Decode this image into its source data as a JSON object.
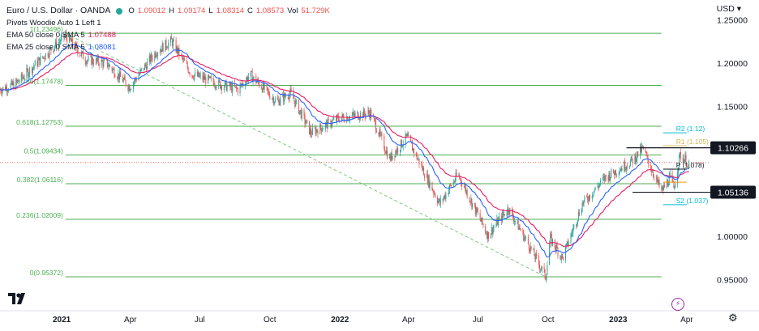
{
  "header": {
    "title": "Euro / U.S. Dollar · OANDA",
    "open_label": "O",
    "open": "1.09012",
    "high_label": "H",
    "high": "1.09174",
    "low_label": "L",
    "low": "1.08314",
    "close_label": "C",
    "close": "1.08573",
    "vol_label": "Vol",
    "vol": "51.729K",
    "currency": "USD"
  },
  "indicators": [
    {
      "label": "Pivots Woodie Auto 1 Left 1",
      "value": ""
    },
    {
      "label": "EMA 50 close 0 SMA 5",
      "value": "1.07488"
    },
    {
      "label": "EMA 25 close 0 SMA 5",
      "value": "1.08081"
    }
  ],
  "colors": {
    "up": "#26a69a",
    "down": "#ef5350",
    "ema50": "#e91e63",
    "ema25": "#2962ff",
    "fib": "#4caf50",
    "price_line": "#ef5350",
    "trend": "#81c784",
    "r1": "#d4b85a",
    "r2": "#00bcd4",
    "p": "#131722",
    "s1": "#ff9800",
    "s2": "#00bcd4"
  },
  "chart_data": {
    "type": "candlestick",
    "x_ticks": [
      {
        "label": "2021",
        "date": "2021-01-01"
      },
      {
        "label": "Apr",
        "date": "2021-04-01"
      },
      {
        "label": "Jul",
        "date": "2021-07-01"
      },
      {
        "label": "Oct",
        "date": "2021-10-01"
      },
      {
        "label": "2022",
        "date": "2022-01-01"
      },
      {
        "label": "Apr",
        "date": "2022-04-01"
      },
      {
        "label": "Jul",
        "date": "2022-07-01"
      },
      {
        "label": "Oct",
        "date": "2022-10-01"
      },
      {
        "label": "2023",
        "date": "2023-01-01"
      },
      {
        "label": "Apr",
        "date": "2023-04-01"
      }
    ],
    "y_ticks": [
      "1.25000",
      "1.20000",
      "1.15000",
      "1.10000",
      "1.05000",
      "1.00000",
      "0.95000"
    ],
    "ylim": [
      0.93,
      1.26
    ],
    "xlim": [
      "2020-10-12",
      "2023-05-02"
    ],
    "price_path": [
      [
        "2020-10-12",
        1.17
      ],
      [
        "2020-11-01",
        1.176
      ],
      [
        "2020-12-01",
        1.202
      ],
      [
        "2021-01-06",
        1.232
      ],
      [
        "2021-02-01",
        1.205
      ],
      [
        "2021-03-01",
        1.2
      ],
      [
        "2021-03-31",
        1.173
      ],
      [
        "2021-05-05",
        1.214
      ],
      [
        "2021-05-25",
        1.226
      ],
      [
        "2021-06-20",
        1.188
      ],
      [
        "2021-07-20",
        1.178
      ],
      [
        "2021-08-20",
        1.17
      ],
      [
        "2021-09-05",
        1.187
      ],
      [
        "2021-10-10",
        1.156
      ],
      [
        "2021-10-28",
        1.166
      ],
      [
        "2021-11-24",
        1.12
      ],
      [
        "2021-12-31",
        1.137
      ],
      [
        "2022-02-10",
        1.143
      ],
      [
        "2022-03-07",
        1.09
      ],
      [
        "2022-03-30",
        1.115
      ],
      [
        "2022-05-12",
        1.038
      ],
      [
        "2022-06-05",
        1.072
      ],
      [
        "2022-06-20",
        1.045
      ],
      [
        "2022-07-14",
        1.002
      ],
      [
        "2022-08-10",
        1.033
      ],
      [
        "2022-09-06",
        0.99
      ],
      [
        "2022-09-28",
        0.954
      ],
      [
        "2022-10-04",
        0.998
      ],
      [
        "2022-10-20",
        0.975
      ],
      [
        "2022-11-15",
        1.038
      ],
      [
        "2022-12-15",
        1.068
      ],
      [
        "2023-01-20",
        1.088
      ],
      [
        "2023-02-02",
        1.102
      ],
      [
        "2023-02-27",
        1.052
      ],
      [
        "2023-03-10",
        1.068
      ],
      [
        "2023-03-15",
        1.056
      ],
      [
        "2023-03-23",
        1.094
      ],
      [
        "2023-04-04",
        1.086
      ]
    ],
    "last_price": 1.0857,
    "fibonacci": [
      {
        "level": "0",
        "value": 0.95372
      },
      {
        "level": "0.236",
        "value": 1.02009
      },
      {
        "level": "0.382",
        "value": 1.06116
      },
      {
        "level": "0.5",
        "value": 1.09434
      },
      {
        "level": "0.618",
        "value": 1.12753
      },
      {
        "level": "0.786",
        "value": 1.17478
      },
      {
        "level": "1",
        "value": 1.23496
      }
    ],
    "fib_text": [
      {
        "level": "0",
        "text": "0(0.95372)"
      },
      {
        "level": "0.236",
        "text": "0.236(1.02009)"
      },
      {
        "level": "0.382",
        "text": "0.382(1.06116)"
      },
      {
        "level": "0.5",
        "text": "0.5(1.09434)"
      },
      {
        "level": "0.618",
        "text": "0.618(1.12753)"
      },
      {
        "level": "0.786",
        "text": "0.786(1.17478)"
      },
      {
        "level": "1",
        "text": "1(1.23496)"
      }
    ],
    "fib_range": [
      "2021-01-06",
      "2023-02-27"
    ],
    "trendline": [
      [
        "2021-01-06",
        1.23496
      ],
      [
        "2022-09-28",
        0.95372
      ]
    ],
    "pivots": [
      {
        "name": "R2",
        "value": 1.12,
        "text": "R2 (1.12)"
      },
      {
        "name": "R1",
        "value": 1.105,
        "text": "R1 (1.105)"
      },
      {
        "name": "P",
        "value": 1.078,
        "text": "P (1.078)"
      },
      {
        "name": "S1",
        "value": 1.063,
        "text": ""
      },
      {
        "name": "S2",
        "value": 1.037,
        "text": "S2 (1.037)"
      }
    ],
    "pivot_range": [
      "2023-03-01",
      "2023-04-01"
    ],
    "horizontal_levels": [
      {
        "value": 1.10266,
        "label": "1.10266",
        "from": "2023-01-12"
      },
      {
        "value": 1.05136,
        "label": "1.05136",
        "from": "2023-01-20"
      }
    ]
  }
}
